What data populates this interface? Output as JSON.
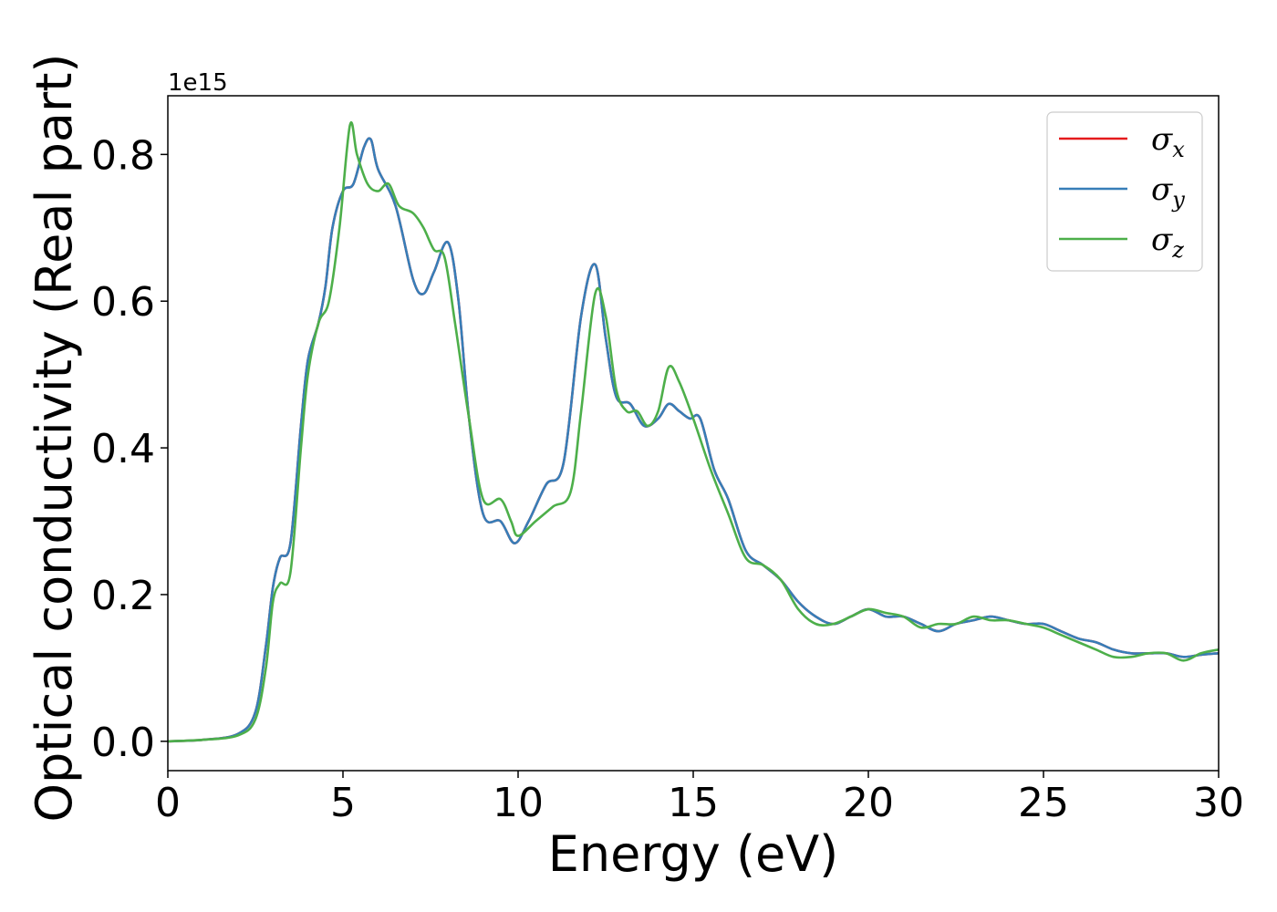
{
  "chart_data": {
    "type": "line",
    "xlabel": "Energy (eV)",
    "ylabel": "Optical conductivity (Real part)",
    "y_offset_label": "1e15",
    "xlim": [
      0,
      30
    ],
    "ylim": [
      -0.04,
      0.88
    ],
    "xticks": [
      "0",
      "5",
      "10",
      "15",
      "20",
      "25",
      "30"
    ],
    "xtick_values": [
      0,
      5,
      10,
      15,
      20,
      25,
      30
    ],
    "yticks": [
      "0.0",
      "0.2",
      "0.4",
      "0.6",
      "0.8"
    ],
    "ytick_values": [
      0.0,
      0.2,
      0.4,
      0.6,
      0.8
    ],
    "grid": false,
    "legend_position": "top-right",
    "series": [
      {
        "name": "σx",
        "color": "#e41a1c",
        "x": [
          0,
          1,
          2,
          2.5,
          2.8,
          3.0,
          3.2,
          3.5,
          3.8,
          4.0,
          4.3,
          4.5,
          4.7,
          5.0,
          5.3,
          5.6,
          5.8,
          6.0,
          6.5,
          7.0,
          7.3,
          7.6,
          8.0,
          8.3,
          8.6,
          9.0,
          9.5,
          9.9,
          10.3,
          10.8,
          11.3,
          11.8,
          12.2,
          12.5,
          12.8,
          13.2,
          13.6,
          14.0,
          14.3,
          14.6,
          14.9,
          15.2,
          15.6,
          16.0,
          16.5,
          17.0,
          17.5,
          18.0,
          18.5,
          19.0,
          19.5,
          20.0,
          20.5,
          21.0,
          21.5,
          22.0,
          22.5,
          23.0,
          23.5,
          24.0,
          24.5,
          25.0,
          25.5,
          26.0,
          26.5,
          27.0,
          27.5,
          28.0,
          28.5,
          29.0,
          29.5,
          30.0
        ],
        "y": [
          0,
          0.002,
          0.01,
          0.04,
          0.13,
          0.21,
          0.25,
          0.27,
          0.43,
          0.52,
          0.57,
          0.62,
          0.7,
          0.75,
          0.76,
          0.81,
          0.82,
          0.78,
          0.73,
          0.63,
          0.61,
          0.64,
          0.68,
          0.6,
          0.44,
          0.31,
          0.3,
          0.27,
          0.3,
          0.35,
          0.38,
          0.58,
          0.65,
          0.55,
          0.47,
          0.46,
          0.43,
          0.44,
          0.46,
          0.45,
          0.44,
          0.44,
          0.37,
          0.33,
          0.26,
          0.24,
          0.22,
          0.19,
          0.17,
          0.16,
          0.17,
          0.18,
          0.17,
          0.17,
          0.16,
          0.15,
          0.16,
          0.165,
          0.17,
          0.165,
          0.16,
          0.16,
          0.15,
          0.14,
          0.135,
          0.125,
          0.12,
          0.12,
          0.12,
          0.115,
          0.118,
          0.12
        ]
      },
      {
        "name": "σy",
        "color": "#377eb8",
        "x": [
          0,
          1,
          2,
          2.5,
          2.8,
          3.0,
          3.2,
          3.5,
          3.8,
          4.0,
          4.3,
          4.5,
          4.7,
          5.0,
          5.3,
          5.6,
          5.8,
          6.0,
          6.5,
          7.0,
          7.3,
          7.6,
          8.0,
          8.3,
          8.6,
          9.0,
          9.5,
          9.9,
          10.3,
          10.8,
          11.3,
          11.8,
          12.2,
          12.5,
          12.8,
          13.2,
          13.6,
          14.0,
          14.3,
          14.6,
          14.9,
          15.2,
          15.6,
          16.0,
          16.5,
          17.0,
          17.5,
          18.0,
          18.5,
          19.0,
          19.5,
          20.0,
          20.5,
          21.0,
          21.5,
          22.0,
          22.5,
          23.0,
          23.5,
          24.0,
          24.5,
          25.0,
          25.5,
          26.0,
          26.5,
          27.0,
          27.5,
          28.0,
          28.5,
          29.0,
          29.5,
          30.0
        ],
        "y": [
          0,
          0.002,
          0.01,
          0.04,
          0.13,
          0.21,
          0.25,
          0.27,
          0.43,
          0.52,
          0.57,
          0.62,
          0.7,
          0.75,
          0.76,
          0.81,
          0.82,
          0.78,
          0.73,
          0.63,
          0.61,
          0.64,
          0.68,
          0.6,
          0.44,
          0.31,
          0.3,
          0.27,
          0.3,
          0.35,
          0.38,
          0.58,
          0.65,
          0.55,
          0.47,
          0.46,
          0.43,
          0.44,
          0.46,
          0.45,
          0.44,
          0.44,
          0.37,
          0.33,
          0.26,
          0.24,
          0.22,
          0.19,
          0.17,
          0.16,
          0.17,
          0.18,
          0.17,
          0.17,
          0.16,
          0.15,
          0.16,
          0.165,
          0.17,
          0.165,
          0.16,
          0.16,
          0.15,
          0.14,
          0.135,
          0.125,
          0.12,
          0.12,
          0.12,
          0.115,
          0.118,
          0.12
        ]
      },
      {
        "name": "σz",
        "color": "#4daf4a",
        "x": [
          0,
          1,
          2,
          2.5,
          2.8,
          3.0,
          3.2,
          3.5,
          3.8,
          4.0,
          4.3,
          4.6,
          4.9,
          5.2,
          5.4,
          5.7,
          6.0,
          6.3,
          6.6,
          7.0,
          7.3,
          7.6,
          7.9,
          8.2,
          8.6,
          9.0,
          9.5,
          9.8,
          10.0,
          10.5,
          11.0,
          11.5,
          11.8,
          12.2,
          12.5,
          12.8,
          13.1,
          13.4,
          13.7,
          14.0,
          14.3,
          14.6,
          15.0,
          15.5,
          16.0,
          16.5,
          17.0,
          17.5,
          18.0,
          18.5,
          19.0,
          19.5,
          20.0,
          20.5,
          21.0,
          21.5,
          22.0,
          22.5,
          23.0,
          23.5,
          24.0,
          24.5,
          25.0,
          25.5,
          26.0,
          26.5,
          27.0,
          27.5,
          28.0,
          28.5,
          29.0,
          29.5,
          30.0
        ],
        "y": [
          0,
          0.002,
          0.008,
          0.03,
          0.1,
          0.19,
          0.215,
          0.23,
          0.4,
          0.5,
          0.57,
          0.6,
          0.7,
          0.84,
          0.8,
          0.76,
          0.75,
          0.76,
          0.73,
          0.72,
          0.7,
          0.67,
          0.66,
          0.57,
          0.44,
          0.33,
          0.33,
          0.3,
          0.28,
          0.3,
          0.32,
          0.34,
          0.45,
          0.61,
          0.58,
          0.48,
          0.45,
          0.45,
          0.43,
          0.45,
          0.51,
          0.49,
          0.44,
          0.37,
          0.31,
          0.25,
          0.24,
          0.22,
          0.18,
          0.16,
          0.16,
          0.17,
          0.18,
          0.175,
          0.17,
          0.155,
          0.16,
          0.16,
          0.17,
          0.165,
          0.165,
          0.16,
          0.155,
          0.145,
          0.135,
          0.125,
          0.115,
          0.115,
          0.12,
          0.12,
          0.11,
          0.12,
          0.125
        ]
      }
    ]
  }
}
